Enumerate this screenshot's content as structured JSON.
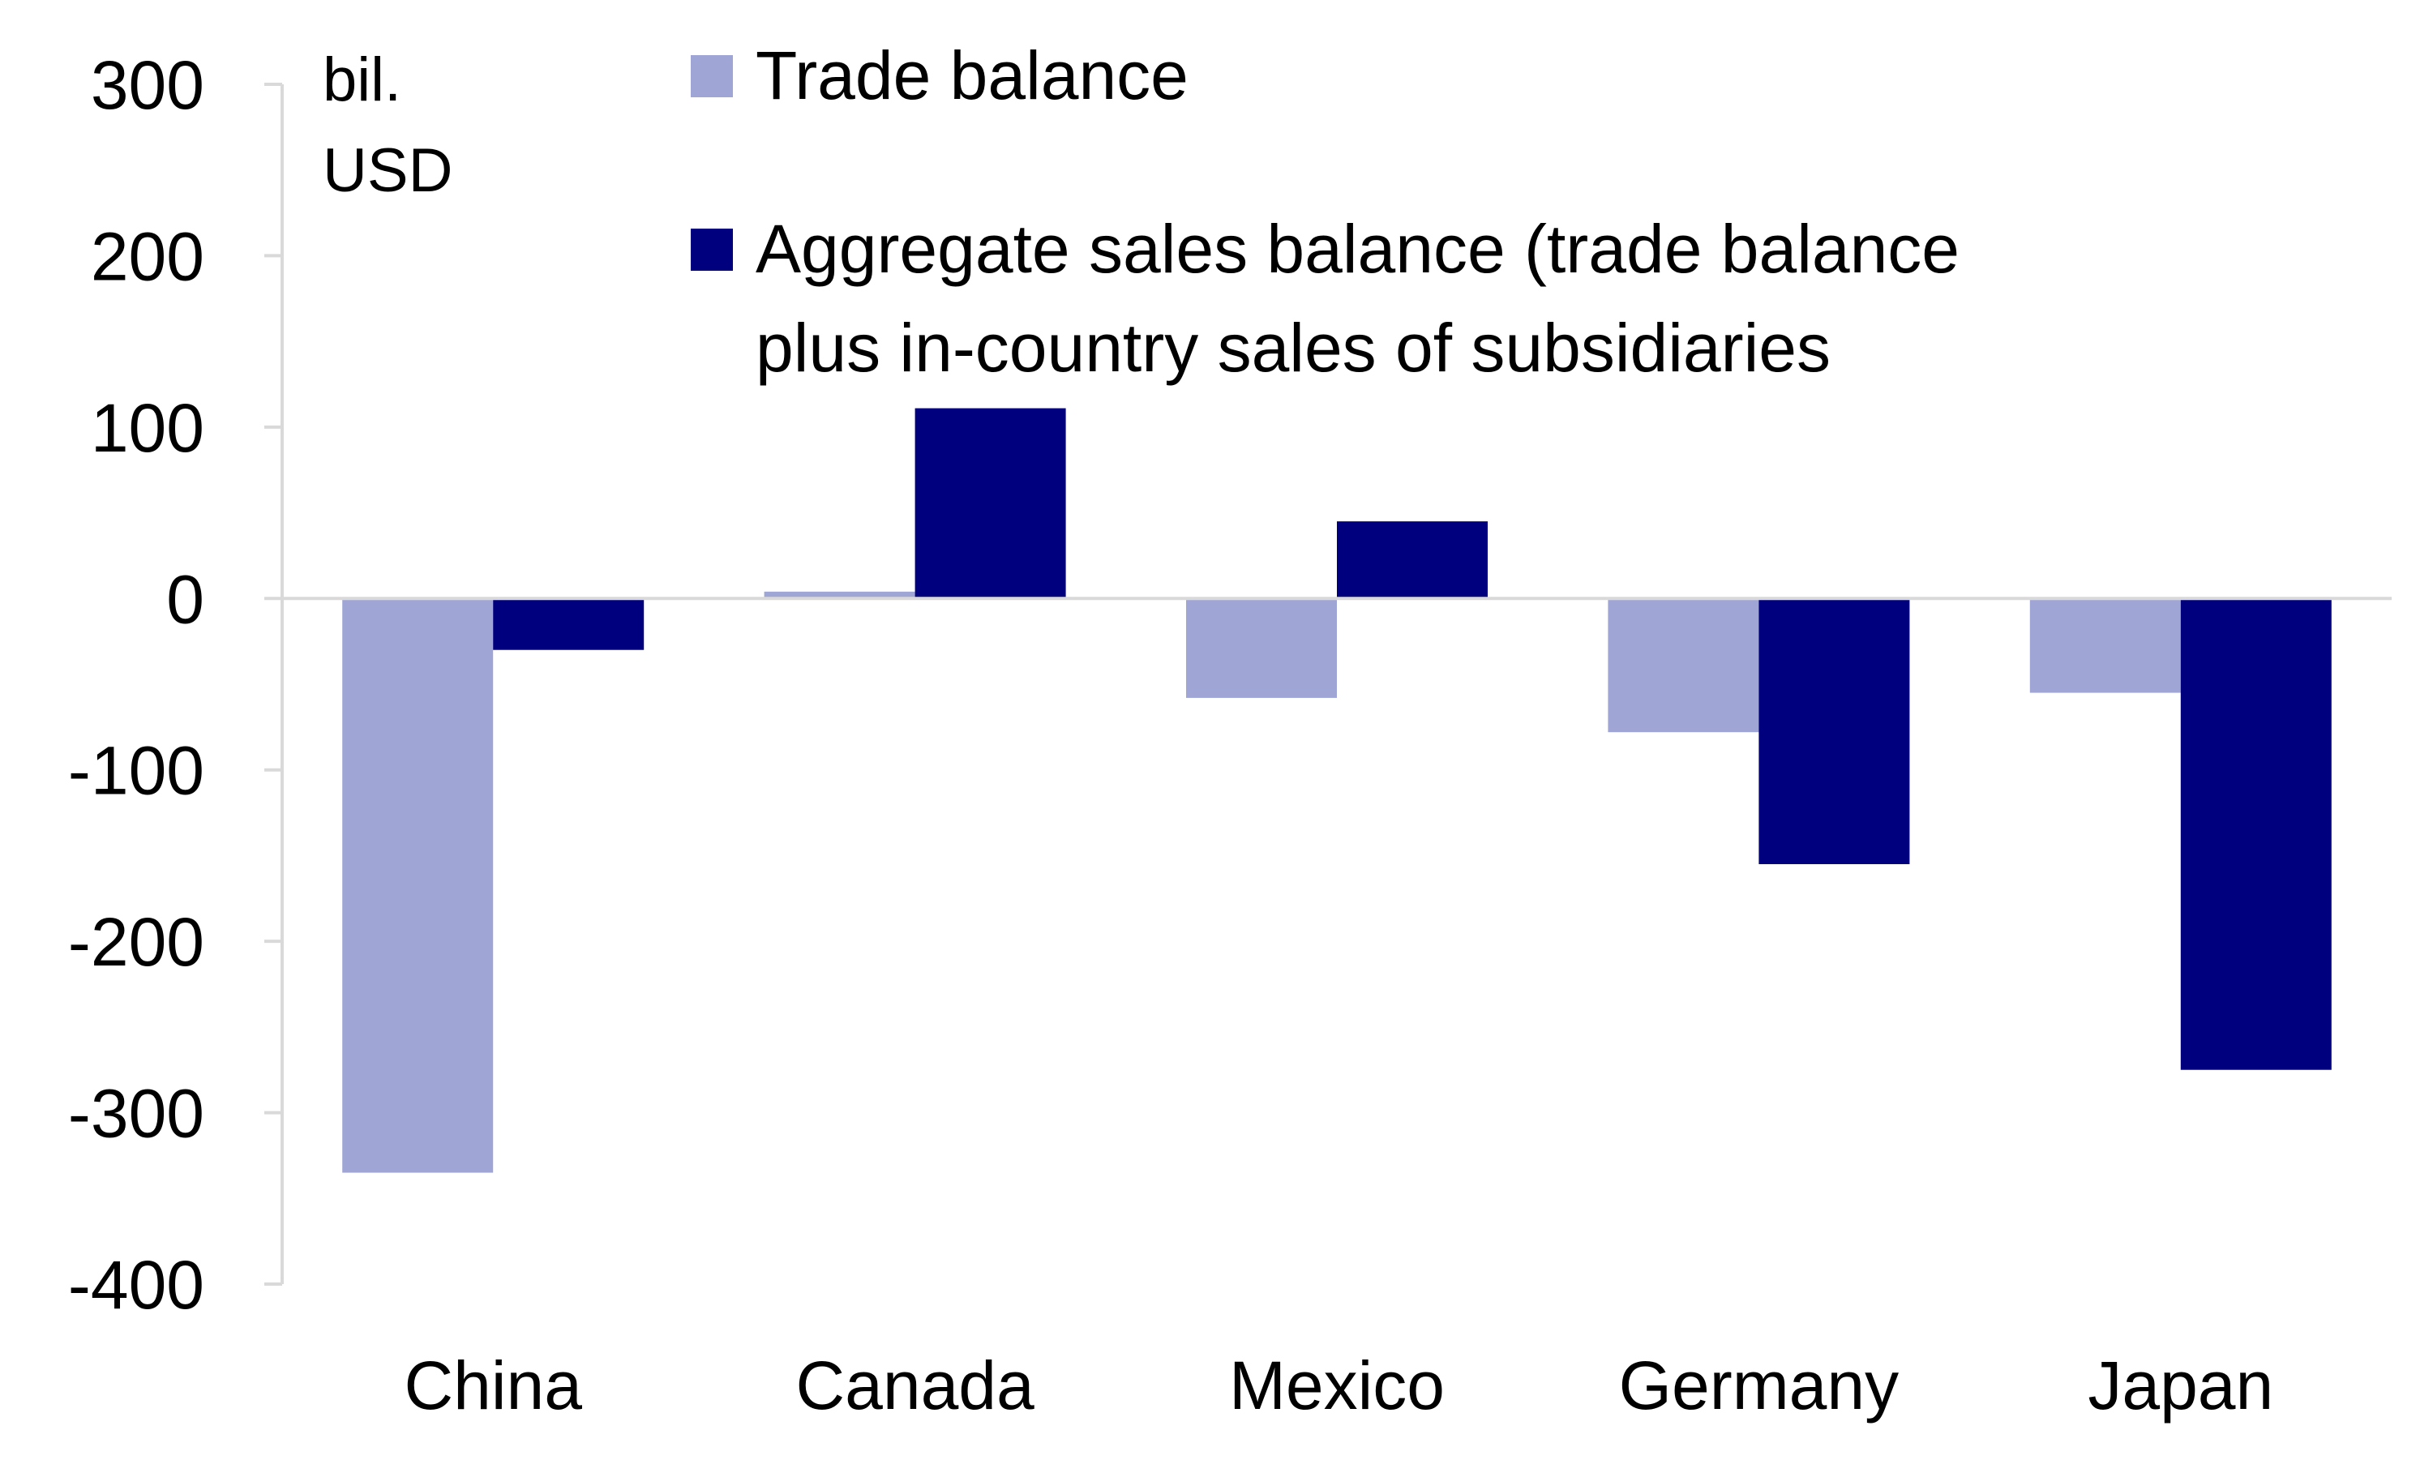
{
  "chart_data": {
    "type": "bar",
    "unit_label": [
      "bil.",
      "USD"
    ],
    "categories": [
      "China",
      "Canada",
      "Mexico",
      "Germany",
      "Japan"
    ],
    "series": [
      {
        "name": "Trade balance",
        "color": "#9fa6d6",
        "values": [
          -335,
          4,
          -58,
          -78,
          -55
        ]
      },
      {
        "name": "Aggregate sales balance (trade balance plus in-country sales of subsidiaries",
        "name_lines": [
          "Aggregate sales balance (trade balance",
          "plus in-country sales of subsidiaries"
        ],
        "color": "#00007f",
        "values": [
          -30,
          111,
          45,
          -155,
          -275
        ]
      }
    ],
    "ylim": [
      -400,
      300
    ],
    "yticks": [
      "300",
      "200",
      "100",
      "0",
      "-100",
      "-200",
      "-300",
      "-400"
    ],
    "ytick_values": [
      300,
      200,
      100,
      0,
      -100,
      -200,
      -300,
      -400
    ],
    "grid": false,
    "legend_position": "top"
  }
}
